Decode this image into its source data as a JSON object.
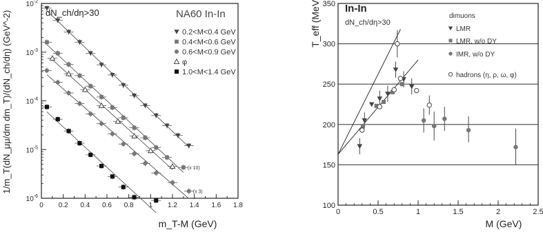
{
  "chart_data": [
    {
      "type": "scatter",
      "title": "NA60 In-In",
      "cut_label": "dN_ch/dη>30",
      "xlabel": "m_T-M (GeV)",
      "ylabel": "1/m_T(dN_μμ/dm dm_T)/(dN_ch/dη) (GeV^-2)",
      "log_y": true,
      "xlim": [
        0,
        1.8
      ],
      "ylim": [
        1e-06,
        0.01
      ],
      "x_ticks": [
        "0",
        "0.2",
        "0.4",
        "0.6",
        "0.8",
        "1",
        "1.2",
        "1.4",
        "1.6",
        "1.8"
      ],
      "y_ticks": [
        "10^-6",
        "10^-5",
        "10^-4",
        "10^-3",
        "10^-2"
      ],
      "grid": false,
      "legend_placement": "top-right",
      "series": [
        {
          "name": "0.2<M<0.4 GeV",
          "marker": "triangle-down",
          "points": [
            [
              0.05,
              0.008
            ],
            [
              0.15,
              0.0045
            ],
            [
              0.25,
              0.0026
            ],
            [
              0.35,
              0.0016
            ],
            [
              0.45,
              0.00095
            ],
            [
              0.55,
              0.00055
            ],
            [
              0.65,
              0.00034
            ],
            [
              0.75,
              0.00021
            ],
            [
              0.85,
              0.000128
            ],
            [
              0.95,
              8e-05
            ],
            [
              1.05,
              5e-05
            ],
            [
              1.15,
              3.1e-05
            ],
            [
              1.25,
              1.95e-05
            ],
            [
              1.35,
              1.2e-05
            ]
          ],
          "annotation": ""
        },
        {
          "name": "0.4<M<0.6 GeV",
          "marker": "square-gray",
          "points": [
            [
              0.05,
              0.0016
            ],
            [
              0.15,
              0.00095
            ],
            [
              0.25,
              0.00056
            ],
            [
              0.35,
              0.00033
            ],
            [
              0.45,
              0.0002
            ],
            [
              0.55,
              0.00012
            ],
            [
              0.65,
              7.3e-05
            ],
            [
              0.75,
              4.5e-05
            ],
            [
              0.85,
              2.8e-05
            ],
            [
              0.95,
              1.75e-05
            ],
            [
              1.05,
              1.1e-05
            ],
            [
              1.15,
              6.9e-06
            ],
            [
              1.3,
              4.3e-06
            ]
          ],
          "annotation": "(x 10)"
        },
        {
          "name": "0.6<M<0.9 GeV",
          "marker": "circle",
          "points": [
            [
              0.05,
              0.00042
            ],
            [
              0.15,
              0.00024
            ],
            [
              0.25,
              0.000145
            ],
            [
              0.35,
              8.8e-05
            ],
            [
              0.45,
              5.4e-05
            ],
            [
              0.55,
              3.4e-05
            ],
            [
              0.65,
              2.1e-05
            ],
            [
              0.75,
              1.3e-05
            ],
            [
              0.85,
              8.2e-06
            ],
            [
              0.95,
              5.2e-06
            ],
            [
              1.05,
              3.3e-06
            ],
            [
              1.2,
              2.1e-06
            ],
            [
              1.35,
              1.4e-06
            ]
          ],
          "annotation": "(x 3)"
        },
        {
          "name": "φ",
          "marker": "triangle-open",
          "points": [
            [
              0.1,
              0.00075
            ],
            [
              0.25,
              0.00036
            ],
            [
              0.4,
              0.00017
            ],
            [
              0.55,
              8e-05
            ],
            [
              0.7,
              3.8e-05
            ],
            [
              0.85,
              1.9e-05
            ],
            [
              1.0,
              9.5e-06
            ],
            [
              1.2,
              4.5e-06
            ]
          ],
          "annotation": ""
        },
        {
          "name": "1.0<M<1.4 GeV",
          "marker": "square-black",
          "points": [
            [
              0.05,
              7.5e-05
            ],
            [
              0.15,
              4.2e-05
            ],
            [
              0.25,
              2.4e-05
            ],
            [
              0.35,
              1.35e-05
            ],
            [
              0.45,
              7.8e-06
            ],
            [
              0.55,
              4.6e-06
            ],
            [
              0.65,
              2.8e-06
            ],
            [
              0.75,
              1.7e-06
            ],
            [
              0.85,
              1.05e-06
            ],
            [
              1.05,
              9e-07
            ]
          ],
          "annotation": ""
        }
      ]
    },
    {
      "type": "scatter",
      "title": "In-In",
      "cut_label": "dN_ch/dη>30",
      "xlabel": "M (GeV)",
      "ylabel": "T_eff (MeV)",
      "xlim": [
        0,
        2.5
      ],
      "ylim": [
        100,
        350
      ],
      "x_ticks": [
        "0",
        "0.5",
        "1",
        "1.5",
        "2",
        "2.5"
      ],
      "y_ticks": [
        "100",
        "150",
        "200",
        "250",
        "300",
        "350"
      ],
      "grid": true,
      "legend_placement": "top-right",
      "legend_title": "dimuons",
      "series": [
        {
          "name": "LMR",
          "marker": "triangle-down",
          "points": [
            [
              0.27,
              173
            ],
            [
              0.33,
              205
            ],
            [
              0.42,
              225
            ],
            [
              0.52,
              232
            ],
            [
              0.62,
              238
            ],
            [
              0.72,
              268
            ],
            [
              0.82,
              256
            ],
            [
              0.92,
              247
            ]
          ]
        },
        {
          "name": "LMR, w/o DY",
          "marker": "square-gray",
          "points": [
            [
              0.31,
              198
            ],
            [
              0.48,
              223
            ],
            [
              0.57,
              228
            ],
            [
              0.68,
              240
            ],
            [
              0.8,
              250
            ]
          ]
        },
        {
          "name": "IMR, w/o DY",
          "marker": "circle",
          "points": [
            [
              1.07,
              205
            ],
            [
              1.2,
              198
            ],
            [
              1.33,
              207
            ],
            [
              1.63,
              193
            ],
            [
              2.22,
              172
            ]
          ]
        },
        {
          "name": "hadrons (η, ρ, ω, φ)",
          "marker": "circle-open",
          "points": [
            [
              0.3,
              193
            ],
            [
              0.52,
              222
            ],
            [
              0.7,
              243
            ],
            [
              0.74,
              300
            ],
            [
              0.78,
              257
            ],
            [
              0.98,
              242
            ],
            [
              1.14,
              224
            ]
          ]
        }
      ],
      "error_bars": [
        [
          0.27,
          163,
          183
        ],
        [
          0.33,
          195,
          215
        ],
        [
          0.52,
          222,
          242
        ],
        [
          0.62,
          228,
          248
        ],
        [
          0.72,
          258,
          278
        ],
        [
          0.82,
          246,
          266
        ],
        [
          0.92,
          237,
          257
        ],
        [
          1.07,
          190,
          220
        ],
        [
          1.2,
          180,
          216
        ],
        [
          1.33,
          192,
          222
        ],
        [
          1.63,
          178,
          210
        ],
        [
          2.22,
          150,
          195
        ],
        [
          0.74,
          283,
          317
        ],
        [
          1.14,
          212,
          236
        ]
      ],
      "lines": [
        {
          "from": [
            0,
            163
          ],
          "to": [
            0.78,
            318
          ]
        },
        {
          "from": [
            0,
            163
          ],
          "to": [
            1.0,
            280
          ]
        }
      ]
    }
  ]
}
